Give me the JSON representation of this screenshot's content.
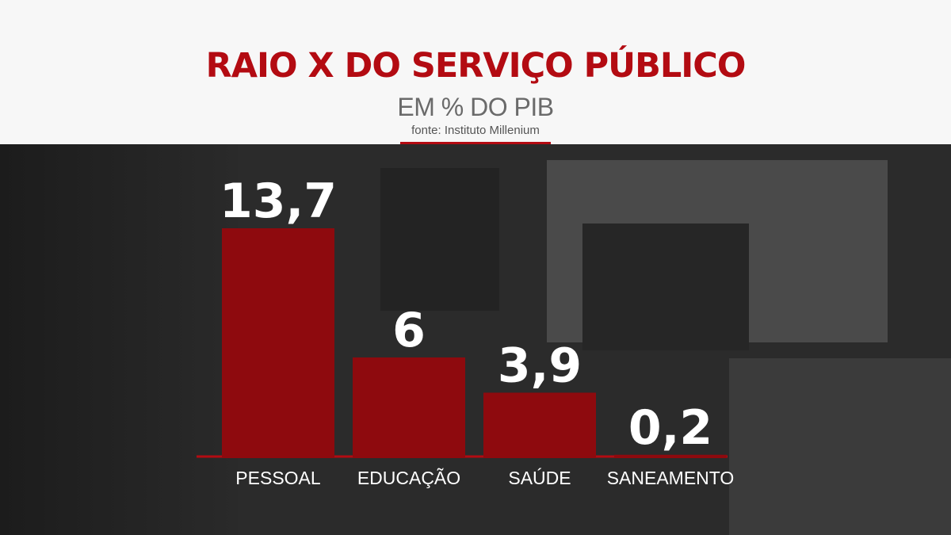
{
  "header": {
    "title": "RAIO X DO SERVIÇO PÚBLICO",
    "subtitle": "EM % DO PIB",
    "source": "fonte: Instituto Millenium"
  },
  "colors": {
    "accent": "#b30b12",
    "bar": "#8e0a0e",
    "label_text": "#ffffff",
    "background_dark": "#2b2b2b"
  },
  "chart_data": {
    "type": "bar",
    "title": "RAIO X DO SERVIÇO PÚBLICO",
    "subtitle": "EM % DO PIB",
    "categories": [
      "PESSOAL",
      "EDUCAÇÃO",
      "SAÚDE",
      "SANEAMENTO"
    ],
    "values": [
      13.7,
      6,
      3.9,
      0.2
    ],
    "value_labels": [
      "13,7",
      "6",
      "3,9",
      "0,2"
    ],
    "xlabel": "",
    "ylabel": "",
    "ylim": [
      0,
      13.7
    ],
    "grid": false,
    "legend": "none"
  }
}
